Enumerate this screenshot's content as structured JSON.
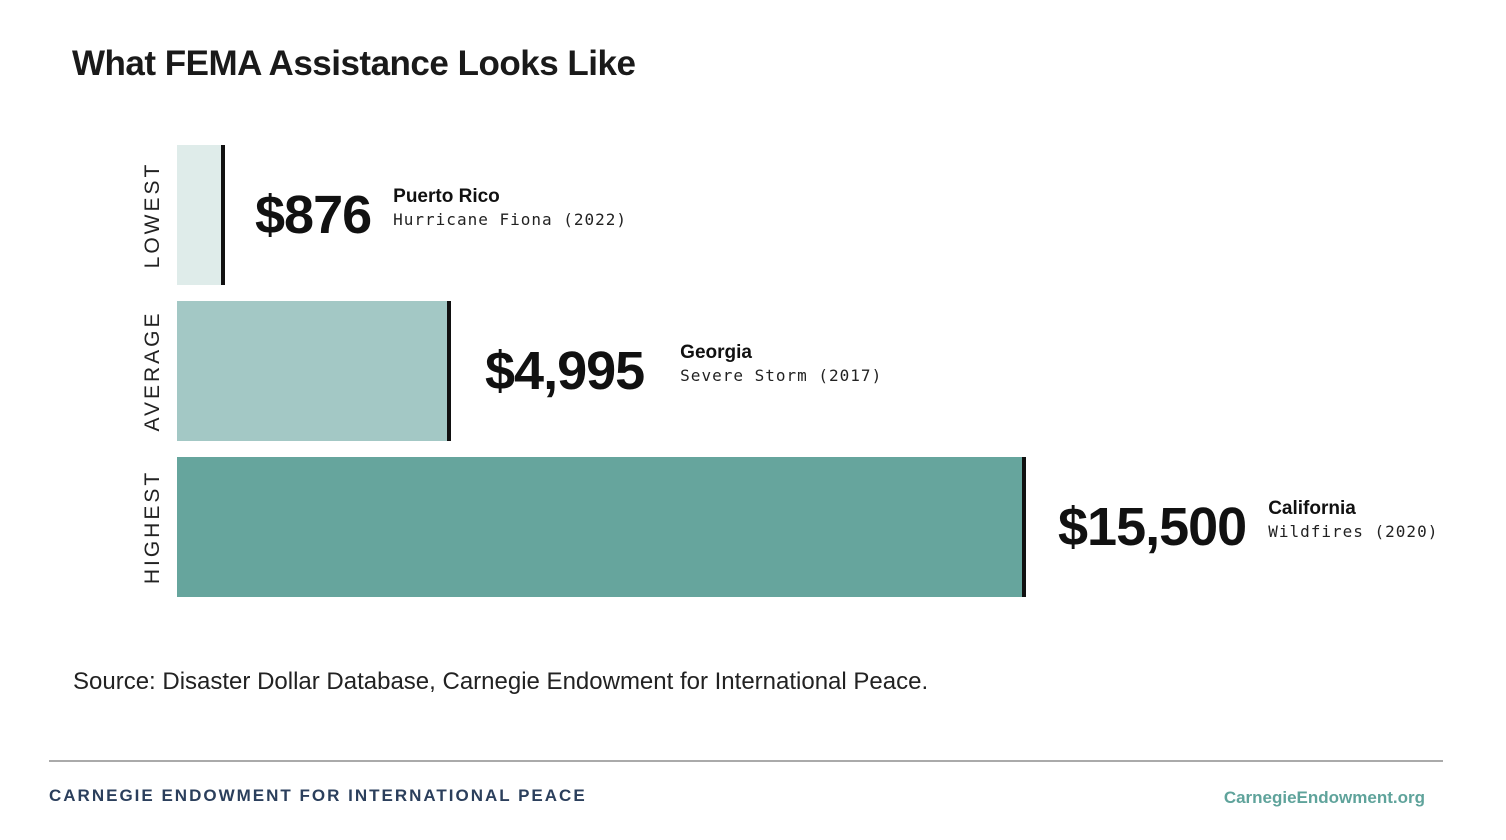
{
  "chart_data": {
    "type": "bar",
    "orientation": "horizontal",
    "title": "What FEMA Assistance Looks Like",
    "categories": [
      "LOWEST",
      "AVERAGE",
      "HIGHEST"
    ],
    "values": [
      876,
      4995,
      15500
    ],
    "value_labels": [
      "$876",
      "$4,995",
      "$15,500"
    ],
    "places": [
      "Puerto Rico",
      "Georgia",
      "California"
    ],
    "events": [
      "Hurricane Fiona (2022)",
      "Severe Storm (2017)",
      "Wildfires (2020)"
    ],
    "colors": [
      "#dfecea",
      "#a3c8c5",
      "#66a59d"
    ],
    "xlim": [
      0,
      15500
    ],
    "grid": false
  },
  "source": "Source: Disaster Dollar Database, Carnegie Endowment for International Peace.",
  "footer": {
    "org": "CARNEGIE ENDOWMENT FOR INTERNATIONAL PEACE",
    "site": "CarnegieEndowment.org"
  }
}
